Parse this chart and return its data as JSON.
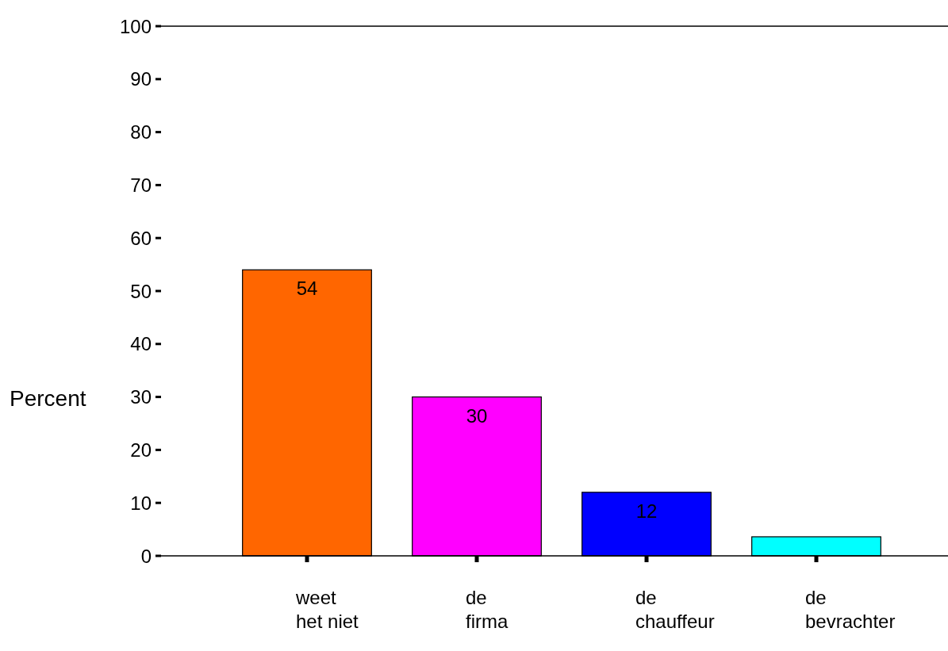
{
  "chart_data": {
    "type": "bar",
    "ylabel": "Percent",
    "categories": [
      "weet het niet",
      "de firma",
      "de chauffeur",
      "de bevrachter"
    ],
    "values": [
      54,
      30,
      12,
      3.6
    ],
    "colors": [
      "#ff6600",
      "#ff00ff",
      "#0000ff",
      "#00ffff"
    ],
    "value_labels": [
      "54",
      "30",
      "12",
      null
    ],
    "ylim": [
      0,
      100
    ],
    "yticks": [
      0,
      10,
      20,
      30,
      40,
      50,
      60,
      70,
      80,
      90,
      100
    ],
    "grid": false
  }
}
